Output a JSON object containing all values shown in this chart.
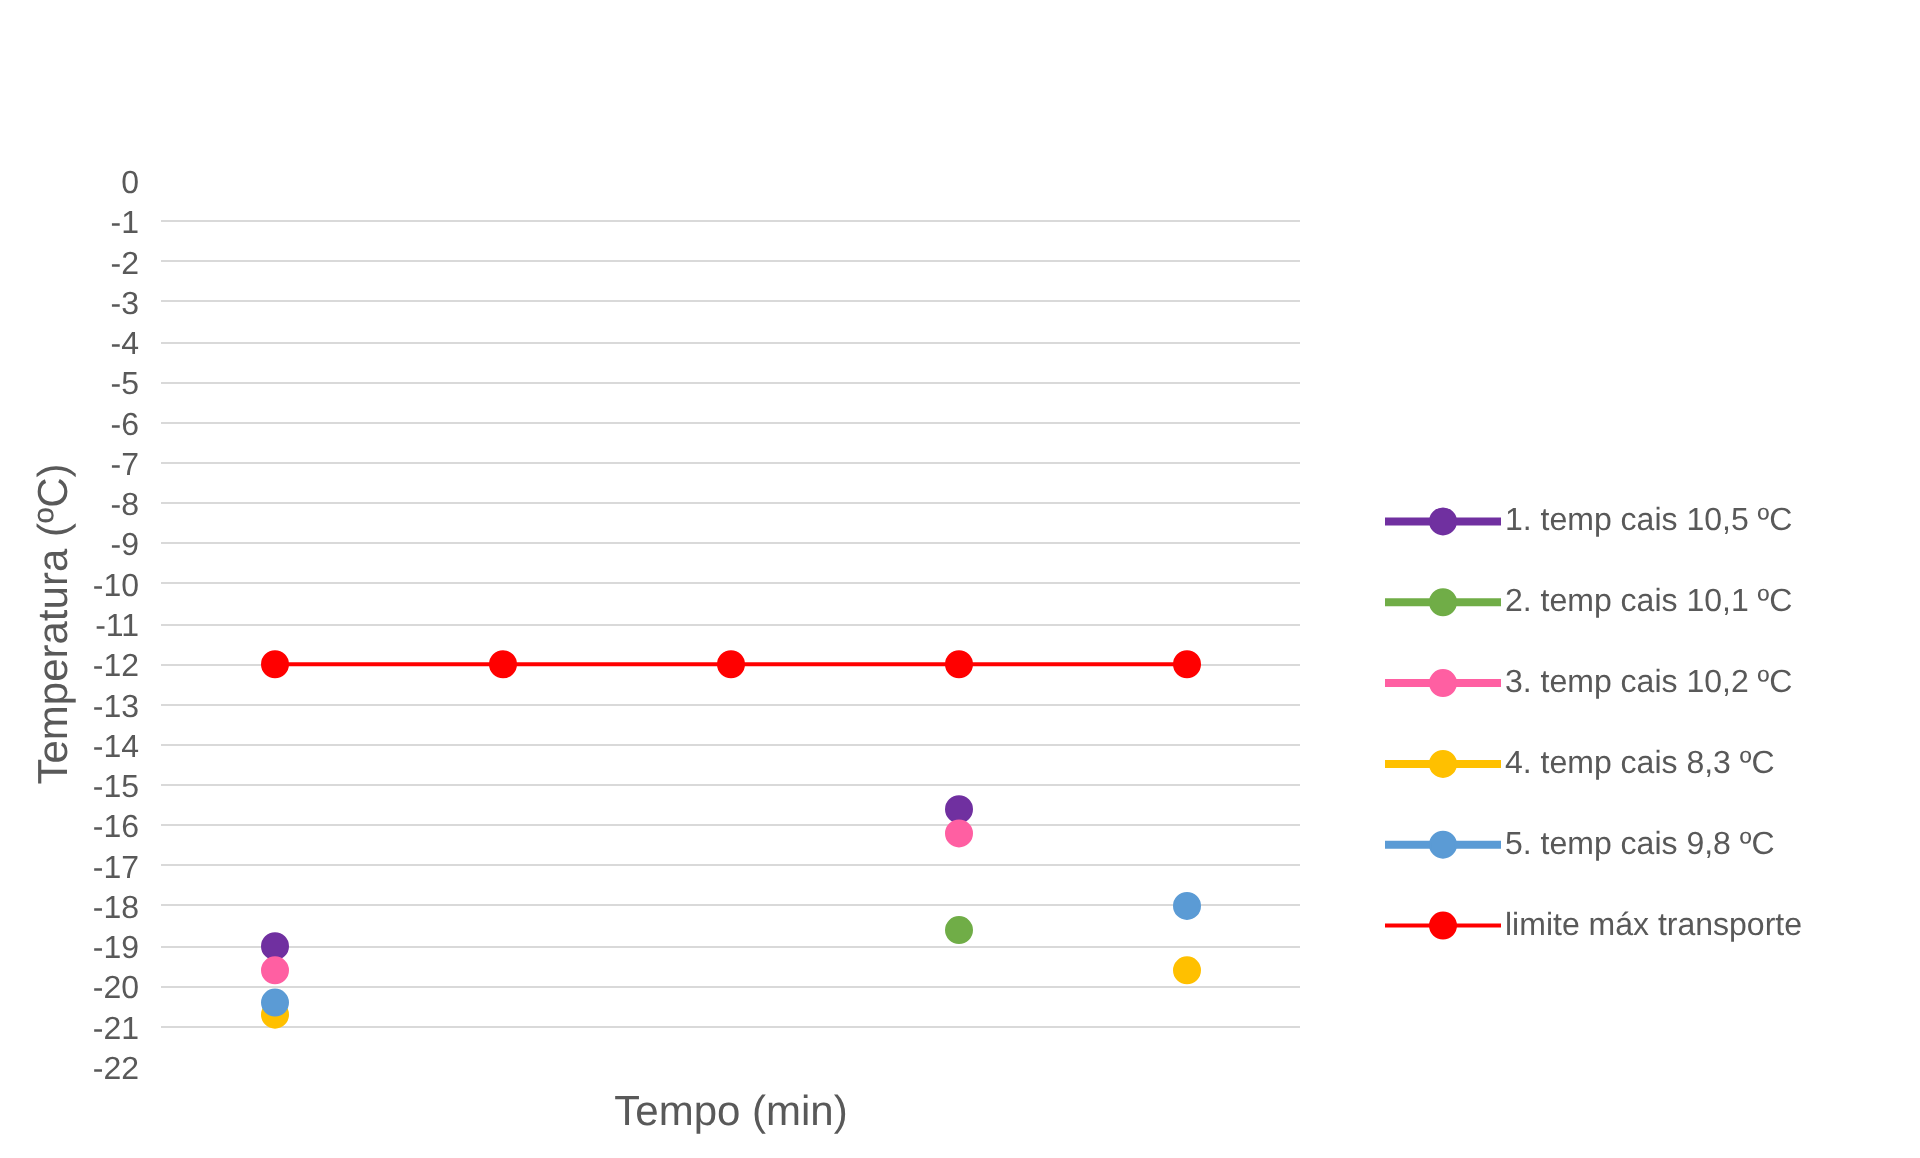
{
  "chart_data": {
    "type": "line",
    "xlabel": "Tempo (min)",
    "ylabel": "Temperatura (ºC)",
    "categories": [
      null,
      null,
      null,
      null,
      null
    ],
    "series": [
      {
        "name": "1. temp cais 10,5 ºC",
        "type": "scatter",
        "color": "#7030a0",
        "values": [
          -19.0,
          null,
          null,
          -15.6,
          null
        ]
      },
      {
        "name": "2. temp cais 10,1 ºC",
        "type": "scatter",
        "color": "#70ad47",
        "values": [
          null,
          null,
          null,
          -18.6,
          null
        ]
      },
      {
        "name": "3. temp cais 10,2 ºC",
        "type": "scatter",
        "color": "#ff5fa2",
        "values": [
          -19.6,
          null,
          null,
          -16.2,
          null
        ]
      },
      {
        "name": "4. temp cais 8,3 ºC",
        "type": "scatter",
        "color": "#ffc000",
        "values": [
          -20.7,
          null,
          null,
          null,
          -19.6
        ]
      },
      {
        "name": "5. temp cais 9,8 ºC",
        "type": "scatter",
        "color": "#5b9bd5",
        "values": [
          -20.4,
          null,
          null,
          null,
          -18.0
        ]
      },
      {
        "name": "limite máx transporte",
        "color": "#ff0000",
        "values": [
          -12,
          -12,
          -12,
          -12,
          -12
        ]
      }
    ],
    "ylim": [
      -22,
      0
    ],
    "yticks": [
      0,
      -1,
      -2,
      -3,
      -4,
      -5,
      -6,
      -7,
      -8,
      -9,
      -10,
      -11,
      -12,
      -13,
      -14,
      -15,
      -16,
      -17,
      -18,
      -19,
      -20,
      -21,
      -22
    ],
    "grid": "y",
    "legend": "right",
    "marker": "circle",
    "tick_labels": "y"
  }
}
